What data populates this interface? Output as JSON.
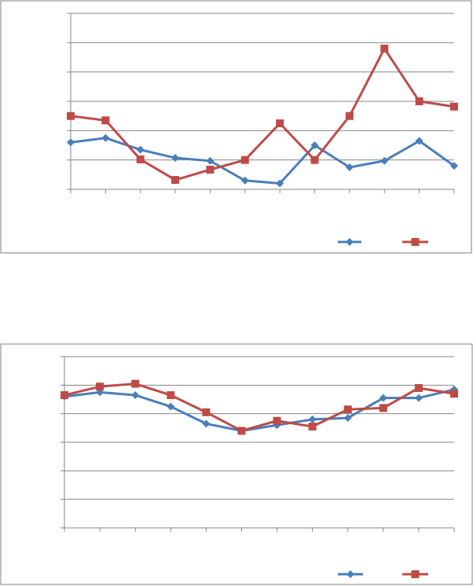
{
  "chart_data": [
    {
      "type": "line",
      "title": "",
      "xlabel": "",
      "ylabel": "",
      "categories": [
        "",
        "",
        "",
        "",
        "",
        "",
        "",
        "",
        "",
        "",
        "",
        ""
      ],
      "ylim": [
        0,
        6
      ],
      "grid": true,
      "legend_position": "bottom-right",
      "series": [
        {
          "values": [
            1.6,
            1.75,
            1.35,
            1.07,
            0.97,
            0.3,
            0.2,
            1.5,
            0.75,
            0.97,
            1.65,
            0.8
          ],
          "color": "#4A7EBB",
          "marker": "diamond"
        },
        {
          "values": [
            2.5,
            2.35,
            1.02,
            0.32,
            0.67,
            1.0,
            2.25,
            1.0,
            2.5,
            4.8,
            3.0,
            2.82
          ],
          "color": "#BE4B48",
          "marker": "square"
        }
      ]
    },
    {
      "type": "line",
      "title": "",
      "xlabel": "",
      "ylabel": "",
      "categories": [
        "",
        "",
        "",
        "",
        "",
        "",
        "",
        "",
        "",
        "",
        "",
        ""
      ],
      "ylim": [
        0,
        6
      ],
      "grid": true,
      "legend_position": "bottom-right",
      "series": [
        {
          "values": [
            4.6,
            4.75,
            4.65,
            4.25,
            3.65,
            3.4,
            3.6,
            3.8,
            3.85,
            4.55,
            4.55,
            4.85
          ],
          "color": "#4A7EBB",
          "marker": "diamond"
        },
        {
          "values": [
            4.65,
            4.95,
            5.05,
            4.65,
            4.05,
            3.4,
            3.75,
            3.55,
            4.15,
            4.2,
            4.9,
            4.7
          ],
          "color": "#BE4B48",
          "marker": "square"
        }
      ]
    }
  ]
}
